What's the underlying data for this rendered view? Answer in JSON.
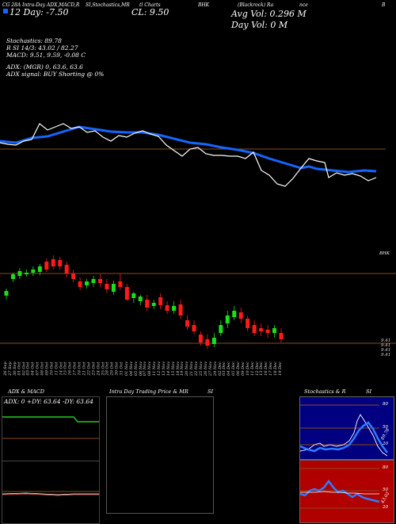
{
  "header": {
    "source": "CG 28A Intra-Day ADX,MACD,R",
    "indicators": "SI,Stochastics,MR",
    "chart_label": "tl Charts",
    "symbol": "BHK",
    "company_name": "(Blackrock) Ra",
    "company_tail": "nce",
    "right_letter": "B",
    "day_label": "12 Day: -7.50",
    "close_label": "CL: 9.50",
    "avg_vol": "Avg Vol: 0.296  M",
    "day_vol": "Day Vol: 0  M"
  },
  "readouts": {
    "stochastics": "Stochastics: 89.78",
    "rsi": "R          SI 14/3: 43.02 / 82.27",
    "macd": "MACD: 9.51, 9.59, -0.08  C",
    "adx": "ADX:                              (MGR) 0, 63.6, 63.6",
    "adx_signal": "ADX  signal:                                BUY Shorting @ 0%"
  },
  "price_labels": {
    "upper_right": "BHK",
    "lower_1": "9.41",
    "lower_2": "9.41",
    "lower_3": "9.41",
    "lower_4": "9.41"
  },
  "dates": [
    "26 Sep",
    "27 Sep",
    "30 Sep",
    "01 Oct",
    "02 Oct",
    "03 Oct",
    "04 Oct",
    "07 Oct",
    "08 Oct",
    "09 Oct",
    "10 Oct",
    "11 Oct",
    "14 Oct",
    "15 Oct",
    "16 Oct",
    "17 Oct",
    "18 Oct",
    "21 Oct",
    "22 Oct",
    "23 Oct",
    "24 Oct",
    "25 Oct",
    "28 Oct",
    "29 Oct",
    "30 Oct",
    "31 Oct",
    "01 Nov",
    "04 Nov",
    "05 Nov",
    "06 Nov",
    "07 Nov",
    "08 Nov",
    "11 Nov",
    "12 Nov",
    "13 Nov",
    "14 Nov",
    "15 Nov",
    "18 Nov",
    "19 Nov",
    "20 Nov",
    "21 Nov",
    "22 Nov",
    "25 Nov",
    "26 Nov",
    "27 Nov",
    "29 Nov",
    "02 Dec",
    "03 Dec",
    "04 Dec",
    "05 Dec",
    "06 Dec",
    "09 Dec",
    "10 Dec",
    "11 Dec",
    "12 Dec",
    "13 Dec",
    "16 Dec",
    "17 Dec",
    "18 Dec",
    "19 Dec"
  ],
  "panels": {
    "adx_title": "ADX  & MACD",
    "adx_values": "ADX: 0   +DY: 63.64   -DY: 63.64",
    "intraday_title": "Intra  Day Trading Price  & MR",
    "intraday_si": "SI",
    "stoch_title": "Stochastics & R",
    "stoch_si": "SI",
    "stoch_ticks": [
      "80",
      "50",
      "20"
    ],
    "rsi_ticks": [
      "80",
      "50",
      "20"
    ],
    "stoch_value": "89.78",
    "rsi_value": "43.02"
  },
  "colors": {
    "price_line": "#ffffff",
    "ma_line": "#1565ff",
    "up_candle": "#19e019",
    "down_candle": "#ff1a1a",
    "ref_line": "#8b4a1a",
    "stoch_bg": "#000080",
    "rsi_bg": "#b00000",
    "adx_green": "#22cc22"
  }
}
